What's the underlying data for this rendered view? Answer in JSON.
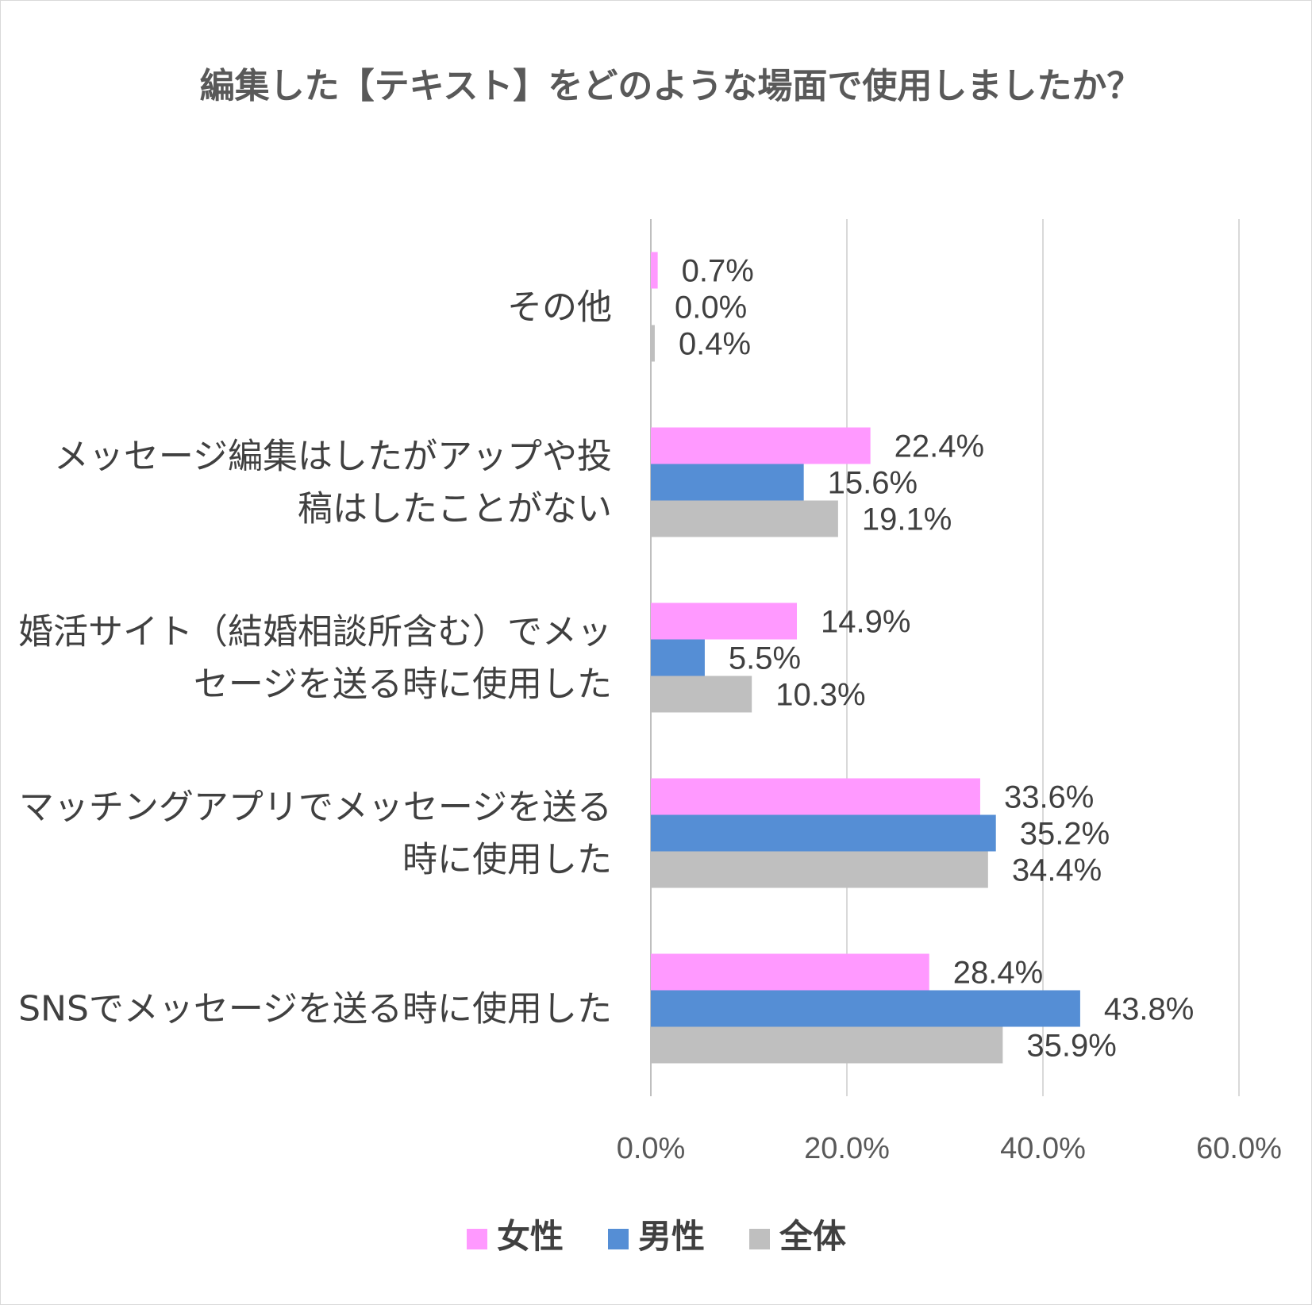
{
  "colors": {
    "female": "#ff99ff",
    "male": "#558ed5",
    "total": "#bfbfbf",
    "gridline": "#d9d9d9",
    "text": "#404040"
  },
  "chart_data": {
    "type": "bar",
    "orientation": "horizontal",
    "title": "編集した【テキスト】をどのような場面で使用しましたか？",
    "categories": [
      [
        "その他"
      ],
      [
        "メッセージ編集はしたがアップや投",
        "稿はしたことがない"
      ],
      [
        "婚活サイト（結婚相談所含む）でメッ",
        "セージを送る時に使用した"
      ],
      [
        "マッチングアプリでメッセージを送る",
        "時に使用した"
      ],
      [
        "SNSでメッセージを送る時に使用した"
      ]
    ],
    "series": [
      {
        "name": "女性",
        "color": "#ff99ff",
        "values": [
          0.7,
          22.4,
          14.9,
          33.6,
          28.4
        ],
        "labels": [
          "0.7%",
          "22.4%",
          "14.9%",
          "33.6%",
          "28.4%"
        ]
      },
      {
        "name": "男性",
        "color": "#558ed5",
        "values": [
          0.0,
          15.6,
          5.5,
          35.2,
          43.8
        ],
        "labels": [
          "0.0%",
          "15.6%",
          "5.5%",
          "35.2%",
          "43.8%"
        ]
      },
      {
        "name": "全体",
        "color": "#bfbfbf",
        "values": [
          0.4,
          19.1,
          10.3,
          34.4,
          35.9
        ],
        "labels": [
          "0.4%",
          "19.1%",
          "10.3%",
          "34.4%",
          "35.9%"
        ]
      }
    ],
    "xlim": [
      0,
      60
    ],
    "xticks": [
      0,
      20,
      40,
      60
    ],
    "xtick_labels": [
      "0.0%",
      "20.0%",
      "40.0%",
      "60.0%"
    ],
    "grid": true,
    "legend_position": "bottom",
    "xlabel": "",
    "ylabel": ""
  }
}
